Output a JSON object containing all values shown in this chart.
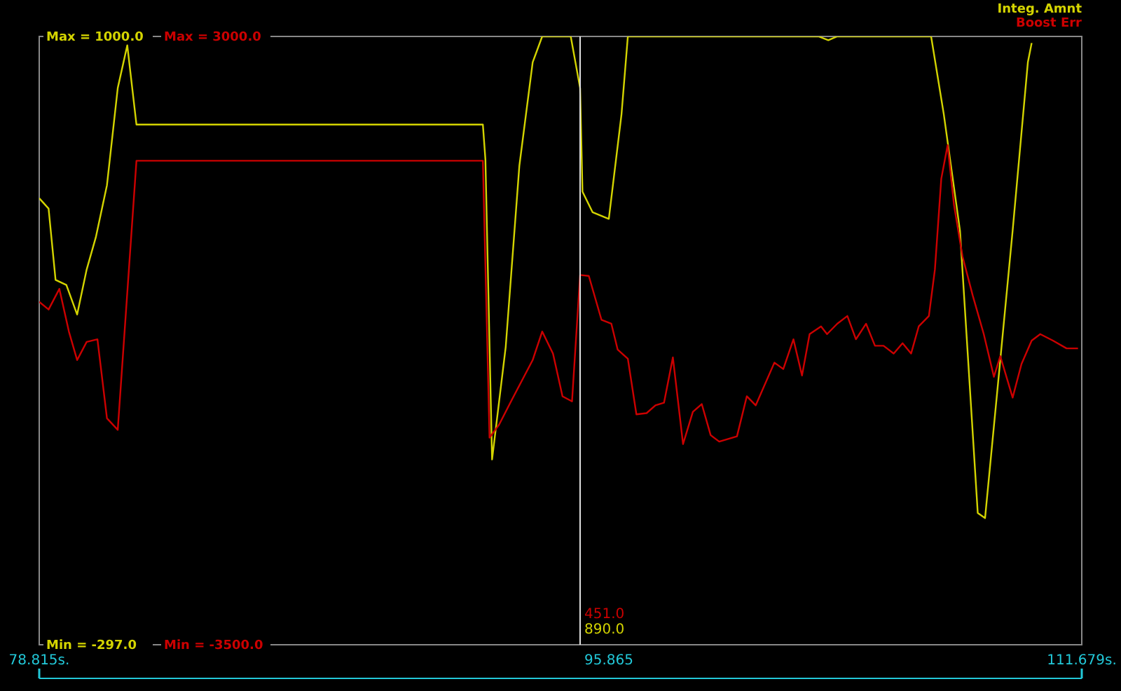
{
  "chart_data": {
    "type": "line",
    "xlim": [
      78.815,
      111.679
    ],
    "xticks": [
      {
        "value": 78.815,
        "label": "78.815s."
      },
      {
        "value": 111.679,
        "label": "111.679s."
      }
    ],
    "ylim": [
      -297,
      1000
    ],
    "yticks": [
      {
        "value": -297,
        "label": "Min = -297.0"
      },
      {
        "value": 1000,
        "label": "Max = 1000.0"
      }
    ],
    "y2lim": [
      -3500,
      3000
    ],
    "y2ticks": [
      {
        "value": -3500,
        "label": "Min = -3500.0"
      },
      {
        "value": 3000,
        "label": "Max = 3000.0"
      }
    ],
    "legend": "top right",
    "grid": false,
    "marker": "none",
    "line_style": "solid",
    "ref_lines": [
      {
        "axis": "x",
        "value": 95.865,
        "label": "95.865",
        "color": "#e0e0e0"
      }
    ],
    "annotations": [
      "890.0",
      "451.0"
    ],
    "series": [
      {
        "name": "Integ. Amnt",
        "color": "#d4d400",
        "axis": "y",
        "x": [
          78.815,
          79.11,
          79.33,
          79.67,
          80.01,
          80.31,
          80.6,
          80.95,
          81.29,
          81.59,
          81.88,
          92.8,
          92.88,
          93.09,
          93.52,
          93.95,
          94.37,
          94.67,
          95.57,
          95.865,
          95.94,
          96.26,
          96.77,
          97.17,
          97.37,
          103.38,
          103.69,
          103.97,
          106.93,
          107.33,
          107.84,
          108.4,
          108.63,
          109.11,
          109.5,
          109.98,
          110.1
        ],
        "values": [
          655,
          633,
          481,
          470,
          407,
          503,
          572,
          683,
          890,
          981,
          812,
          812,
          738,
          98,
          338,
          724,
          945,
          1000,
          1000,
          890,
          669,
          625,
          611,
          834,
          1000,
          1000,
          992,
          1000,
          1000,
          834,
          586,
          -16,
          -27,
          310,
          586,
          945,
          986
        ]
      },
      {
        "name": "Boost Err",
        "color": "#cc0000",
        "axis": "y2",
        "x": [
          78.815,
          79.11,
          79.45,
          79.75,
          80.01,
          80.31,
          80.65,
          80.95,
          81.29,
          81.88,
          92.8,
          93.01,
          93.31,
          93.73,
          94.37,
          94.67,
          95.01,
          95.31,
          95.61,
          95.865,
          96.14,
          96.54,
          96.85,
          97.05,
          97.37,
          97.64,
          97.96,
          98.24,
          98.51,
          98.79,
          99.11,
          99.42,
          99.7,
          99.98,
          100.25,
          100.53,
          100.81,
          101.12,
          101.4,
          101.99,
          102.27,
          102.59,
          102.86,
          103.1,
          103.46,
          103.65,
          103.97,
          104.29,
          104.56,
          104.88,
          105.16,
          105.43,
          105.75,
          106.03,
          106.3,
          106.54,
          106.86,
          107.05,
          107.25,
          107.45,
          107.65,
          107.92,
          108.24,
          108.59,
          108.91,
          109.11,
          109.5,
          109.78,
          110.1,
          110.37,
          110.77,
          111.2,
          111.56
        ],
        "values": [
          165,
          82,
          303,
          -153,
          -458,
          -264,
          -236,
          -1080,
          -1204,
          1672,
          1672,
          -1287,
          -1149,
          -872,
          -458,
          -153,
          -388,
          -845,
          -900,
          451,
          441,
          -29,
          -70,
          -347,
          -444,
          -1038,
          -1025,
          -942,
          -914,
          -430,
          -1356,
          -1011,
          -928,
          -1260,
          -1329,
          -1301,
          -1273,
          -845,
          -942,
          -485,
          -554,
          -236,
          -623,
          -181,
          -98,
          -181,
          -70,
          13,
          -236,
          -70,
          -305,
          -305,
          -388,
          -278,
          -388,
          -98,
          13,
          511,
          1479,
          1838,
          1202,
          649,
          234,
          -181,
          -637,
          -416,
          -859,
          -499,
          -250,
          -181,
          -250,
          -333,
          -333
        ]
      }
    ]
  }
}
